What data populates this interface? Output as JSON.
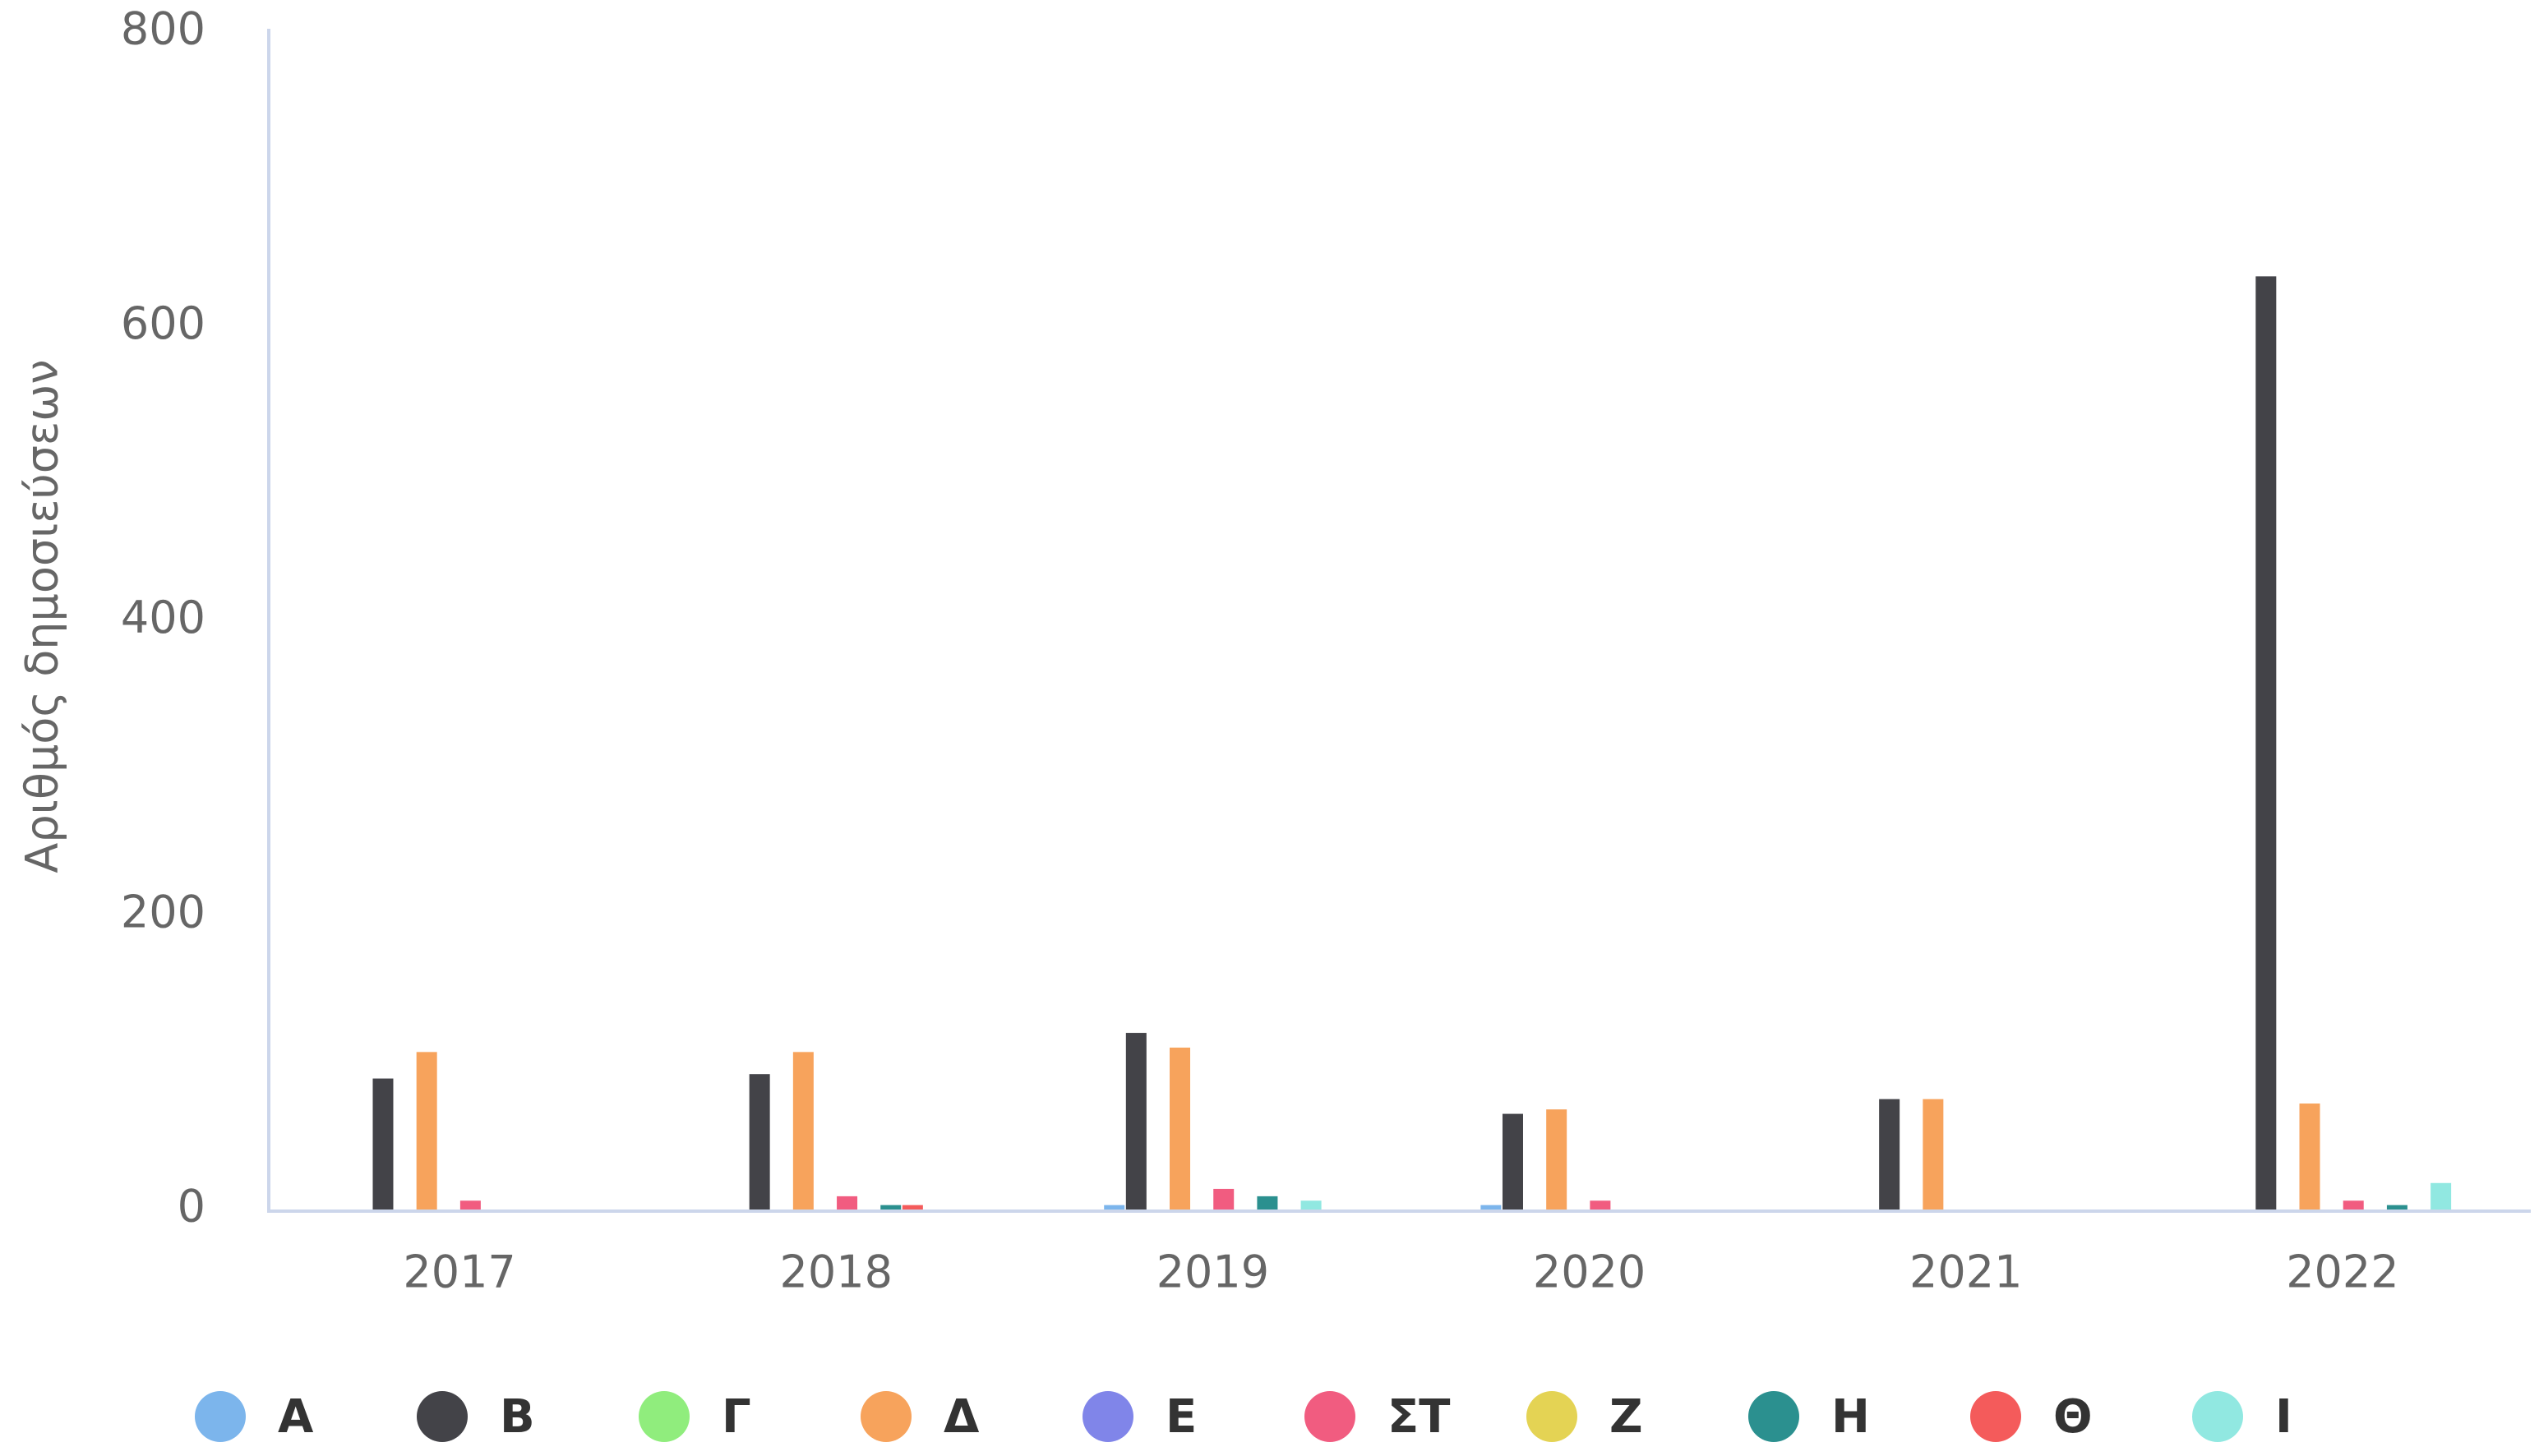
{
  "chart_data": {
    "type": "bar",
    "y_label": "Αριθμός δημοσιεύσεων",
    "categories": [
      "2017",
      "2018",
      "2019",
      "2020",
      "2021",
      "2022"
    ],
    "ylim": [
      0,
      800
    ],
    "yticks": [
      0,
      200,
      400,
      600,
      800
    ],
    "legend": "bottom",
    "series": [
      {
        "name": "Α",
        "color": "#7cb5ec",
        "values": [
          0,
          0,
          3,
          3,
          0,
          0
        ]
      },
      {
        "name": "Β",
        "color": "#434348",
        "values": [
          89,
          92,
          120,
          65,
          75,
          634
        ]
      },
      {
        "name": "Γ",
        "color": "#90ed7d",
        "values": [
          0,
          0,
          0,
          0,
          0,
          0
        ]
      },
      {
        "name": "Δ",
        "color": "#f7a35c",
        "values": [
          107,
          107,
          110,
          68,
          75,
          72
        ]
      },
      {
        "name": "Ε",
        "color": "#8085e9",
        "values": [
          0,
          0,
          0,
          0,
          0,
          0
        ]
      },
      {
        "name": "ΣΤ",
        "color": "#f15c80",
        "values": [
          6,
          9,
          14,
          6,
          0,
          6
        ]
      },
      {
        "name": "Ζ",
        "color": "#e4d354",
        "values": [
          0,
          0,
          0,
          0,
          0,
          0
        ]
      },
      {
        "name": "Η",
        "color": "#2b908f",
        "values": [
          0,
          3,
          9,
          0,
          0,
          3
        ]
      },
      {
        "name": "Θ",
        "color": "#f45b5b",
        "values": [
          0,
          3,
          0,
          0,
          0,
          0
        ]
      },
      {
        "name": "Ι",
        "color": "#91e8e1",
        "values": [
          0,
          0,
          6,
          0,
          0,
          18
        ]
      }
    ]
  }
}
